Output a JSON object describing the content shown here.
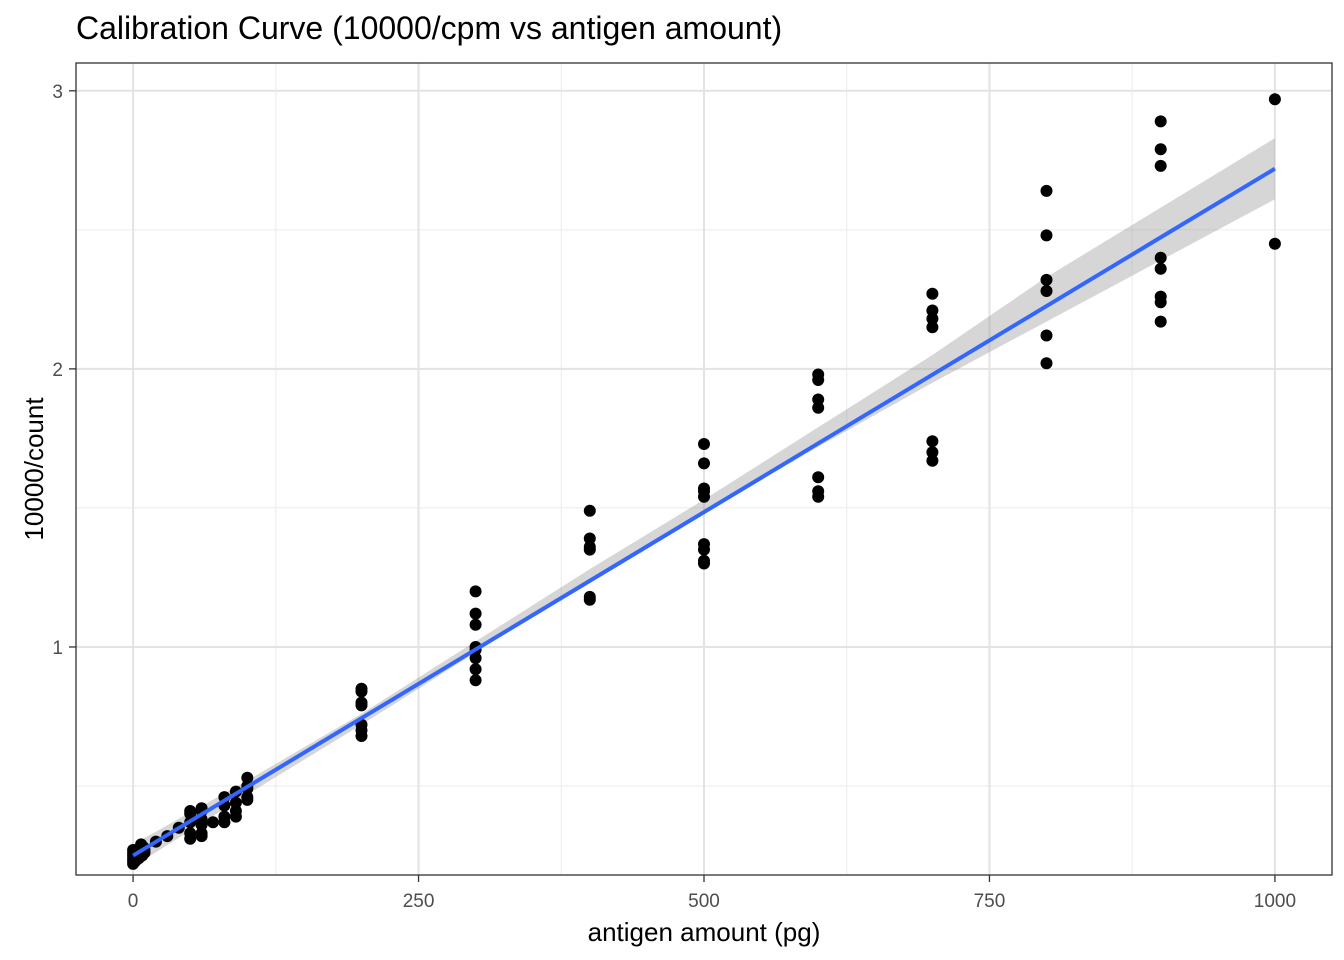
{
  "chart_data": {
    "type": "scatter",
    "title": "Calibration Curve (10000/cpm vs antigen amount)",
    "xlabel": "antigen amount (pg)",
    "ylabel": "10000/count",
    "xlim": [
      -50,
      1050
    ],
    "ylim": [
      0.18,
      3.1
    ],
    "x_ticks": [
      0,
      250,
      500,
      750,
      1000
    ],
    "x_tick_labels": [
      "0",
      "250",
      "500",
      "750",
      "1000"
    ],
    "y_ticks": [
      1,
      2,
      3
    ],
    "y_tick_labels": [
      "1",
      "2",
      "3"
    ],
    "grid": true,
    "legend": "none",
    "points": [
      {
        "x": 0,
        "y": 0.22
      },
      {
        "x": 0,
        "y": 0.23
      },
      {
        "x": 0,
        "y": 0.24
      },
      {
        "x": 0,
        "y": 0.25
      },
      {
        "x": 0,
        "y": 0.26
      },
      {
        "x": 0,
        "y": 0.27
      },
      {
        "x": 2,
        "y": 0.23
      },
      {
        "x": 3,
        "y": 0.25
      },
      {
        "x": 4,
        "y": 0.27
      },
      {
        "x": 5,
        "y": 0.24
      },
      {
        "x": 6,
        "y": 0.26
      },
      {
        "x": 7,
        "y": 0.29
      },
      {
        "x": 8,
        "y": 0.25
      },
      {
        "x": 9,
        "y": 0.28
      },
      {
        "x": 10,
        "y": 0.26
      },
      {
        "x": 10,
        "y": 0.27
      },
      {
        "x": 20,
        "y": 0.3
      },
      {
        "x": 30,
        "y": 0.32
      },
      {
        "x": 40,
        "y": 0.35
      },
      {
        "x": 50,
        "y": 0.31
      },
      {
        "x": 50,
        "y": 0.33
      },
      {
        "x": 50,
        "y": 0.37
      },
      {
        "x": 50,
        "y": 0.4
      },
      {
        "x": 50,
        "y": 0.41
      },
      {
        "x": 60,
        "y": 0.32
      },
      {
        "x": 60,
        "y": 0.33
      },
      {
        "x": 60,
        "y": 0.36
      },
      {
        "x": 60,
        "y": 0.38
      },
      {
        "x": 60,
        "y": 0.41
      },
      {
        "x": 60,
        "y": 0.42
      },
      {
        "x": 70,
        "y": 0.37
      },
      {
        "x": 80,
        "y": 0.37
      },
      {
        "x": 80,
        "y": 0.39
      },
      {
        "x": 80,
        "y": 0.43
      },
      {
        "x": 80,
        "y": 0.46
      },
      {
        "x": 90,
        "y": 0.39
      },
      {
        "x": 90,
        "y": 0.41
      },
      {
        "x": 90,
        "y": 0.44
      },
      {
        "x": 90,
        "y": 0.48
      },
      {
        "x": 100,
        "y": 0.45
      },
      {
        "x": 100,
        "y": 0.46
      },
      {
        "x": 100,
        "y": 0.49
      },
      {
        "x": 100,
        "y": 0.5
      },
      {
        "x": 100,
        "y": 0.53
      },
      {
        "x": 200,
        "y": 0.68
      },
      {
        "x": 200,
        "y": 0.7
      },
      {
        "x": 200,
        "y": 0.72
      },
      {
        "x": 200,
        "y": 0.79
      },
      {
        "x": 200,
        "y": 0.8
      },
      {
        "x": 200,
        "y": 0.84
      },
      {
        "x": 200,
        "y": 0.85
      },
      {
        "x": 300,
        "y": 0.88
      },
      {
        "x": 300,
        "y": 0.92
      },
      {
        "x": 300,
        "y": 0.96
      },
      {
        "x": 300,
        "y": 0.99
      },
      {
        "x": 300,
        "y": 1.0
      },
      {
        "x": 300,
        "y": 1.08
      },
      {
        "x": 300,
        "y": 1.12
      },
      {
        "x": 300,
        "y": 1.2
      },
      {
        "x": 400,
        "y": 1.17
      },
      {
        "x": 400,
        "y": 1.18
      },
      {
        "x": 400,
        "y": 1.35
      },
      {
        "x": 400,
        "y": 1.36
      },
      {
        "x": 400,
        "y": 1.39
      },
      {
        "x": 400,
        "y": 1.49
      },
      {
        "x": 500,
        "y": 1.3
      },
      {
        "x": 500,
        "y": 1.31
      },
      {
        "x": 500,
        "y": 1.35
      },
      {
        "x": 500,
        "y": 1.37
      },
      {
        "x": 500,
        "y": 1.54
      },
      {
        "x": 500,
        "y": 1.56
      },
      {
        "x": 500,
        "y": 1.57
      },
      {
        "x": 500,
        "y": 1.66
      },
      {
        "x": 500,
        "y": 1.73
      },
      {
        "x": 600,
        "y": 1.54
      },
      {
        "x": 600,
        "y": 1.56
      },
      {
        "x": 600,
        "y": 1.61
      },
      {
        "x": 600,
        "y": 1.86
      },
      {
        "x": 600,
        "y": 1.89
      },
      {
        "x": 600,
        "y": 1.96
      },
      {
        "x": 600,
        "y": 1.98
      },
      {
        "x": 700,
        "y": 1.67
      },
      {
        "x": 700,
        "y": 1.7
      },
      {
        "x": 700,
        "y": 1.74
      },
      {
        "x": 700,
        "y": 2.15
      },
      {
        "x": 700,
        "y": 2.18
      },
      {
        "x": 700,
        "y": 2.21
      },
      {
        "x": 700,
        "y": 2.27
      },
      {
        "x": 800,
        "y": 2.02
      },
      {
        "x": 800,
        "y": 2.12
      },
      {
        "x": 800,
        "y": 2.28
      },
      {
        "x": 800,
        "y": 2.32
      },
      {
        "x": 800,
        "y": 2.48
      },
      {
        "x": 800,
        "y": 2.64
      },
      {
        "x": 900,
        "y": 2.17
      },
      {
        "x": 900,
        "y": 2.24
      },
      {
        "x": 900,
        "y": 2.26
      },
      {
        "x": 900,
        "y": 2.36
      },
      {
        "x": 900,
        "y": 2.4
      },
      {
        "x": 900,
        "y": 2.73
      },
      {
        "x": 900,
        "y": 2.79
      },
      {
        "x": 900,
        "y": 2.89
      },
      {
        "x": 1000,
        "y": 2.45
      },
      {
        "x": 1000,
        "y": 2.97
      }
    ],
    "fit": {
      "method": "linear",
      "color": "#3366ff",
      "band_color": "#999999",
      "line": [
        {
          "x": 0,
          "y": 0.25
        },
        {
          "x": 1000,
          "y": 2.72
        }
      ],
      "band_upper": [
        {
          "x": 0,
          "y": 0.29
        },
        {
          "x": 100,
          "y": 0.52
        },
        {
          "x": 200,
          "y": 0.76
        },
        {
          "x": 300,
          "y": 1.02
        },
        {
          "x": 400,
          "y": 1.28
        },
        {
          "x": 500,
          "y": 1.53
        },
        {
          "x": 600,
          "y": 1.79
        },
        {
          "x": 700,
          "y": 2.05
        },
        {
          "x": 800,
          "y": 2.33
        },
        {
          "x": 900,
          "y": 2.58
        },
        {
          "x": 1000,
          "y": 2.83
        }
      ],
      "band_lower": [
        {
          "x": 1000,
          "y": 2.61
        },
        {
          "x": 900,
          "y": 2.39
        },
        {
          "x": 800,
          "y": 2.17
        },
        {
          "x": 700,
          "y": 1.95
        },
        {
          "x": 600,
          "y": 1.72
        },
        {
          "x": 500,
          "y": 1.48
        },
        {
          "x": 400,
          "y": 1.24
        },
        {
          "x": 300,
          "y": 0.98
        },
        {
          "x": 200,
          "y": 0.72
        },
        {
          "x": 100,
          "y": 0.47
        },
        {
          "x": 0,
          "y": 0.21
        }
      ]
    }
  }
}
